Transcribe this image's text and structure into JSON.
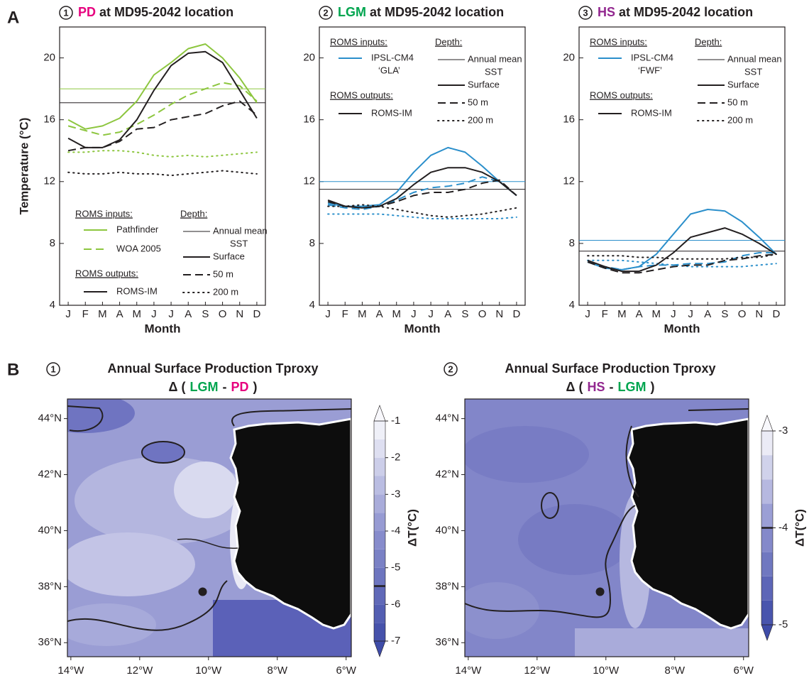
{
  "panel_labels": [
    "A",
    "B"
  ],
  "chart_data": [
    {
      "type": "line",
      "number": "1",
      "title": [
        {
          "text": "PD",
          "color": "#e6007e"
        },
        {
          "text": "at MD95-2042 location",
          "color": "#231f20"
        }
      ],
      "categories": [
        "J",
        "F",
        "M",
        "A",
        "M",
        "J",
        "J",
        "A",
        "S",
        "O",
        "N",
        "D"
      ],
      "ylim": [
        4,
        22
      ],
      "yticks": [
        4,
        8,
        12,
        16,
        20
      ],
      "ylabel": "Temperature (°C)",
      "xlabel": "Month",
      "mean_lines": [
        {
          "value": 18.0,
          "color": "#8dc63f"
        },
        {
          "value": 17.1,
          "color": "#231f20"
        }
      ],
      "series": [
        {
          "color": "#8dc63f",
          "style": "solid",
          "values": [
            16.0,
            15.4,
            15.6,
            16.1,
            17.2,
            18.9,
            19.7,
            20.6,
            20.9,
            20.0,
            18.7,
            17.1
          ]
        },
        {
          "color": "#8dc63f",
          "style": "dashed",
          "values": [
            15.6,
            15.3,
            15.0,
            15.2,
            15.7,
            16.3,
            17.0,
            17.6,
            18.0,
            18.4,
            18.2,
            17.2
          ]
        },
        {
          "color": "#8dc63f",
          "style": "dotted",
          "values": [
            13.9,
            13.9,
            14.0,
            14.0,
            13.9,
            13.7,
            13.6,
            13.7,
            13.6,
            13.7,
            13.8,
            13.9
          ]
        },
        {
          "color": "#231f20",
          "style": "solid",
          "values": [
            14.8,
            14.2,
            14.2,
            14.7,
            16.0,
            17.9,
            19.5,
            20.3,
            20.4,
            19.7,
            17.9,
            16.1
          ]
        },
        {
          "color": "#231f20",
          "style": "dashed",
          "values": [
            14.0,
            14.2,
            14.2,
            14.6,
            15.4,
            15.5,
            16.0,
            16.2,
            16.4,
            16.9,
            17.2,
            16.3
          ]
        },
        {
          "color": "#231f20",
          "style": "dotted",
          "values": [
            12.6,
            12.5,
            12.5,
            12.6,
            12.5,
            12.5,
            12.4,
            12.5,
            12.6,
            12.7,
            12.6,
            12.5
          ]
        }
      ],
      "legend": {
        "position": "lower-left",
        "inputs_title": "ROMS inputs:",
        "inputs": [
          {
            "label": [
              "Pathfinder"
            ],
            "color": "#8dc63f",
            "style": "solid"
          },
          {
            "label": [
              "WOA 2005"
            ],
            "color": "#8dc63f",
            "style": "dashed"
          }
        ],
        "outputs_title": "ROMS outputs:",
        "outputs": [
          {
            "label": [
              "ROMS-IM"
            ],
            "color": "#231f20",
            "style": "solid"
          }
        ],
        "depth_title": "Depth:",
        "depth": [
          {
            "label": [
              "Annual mean",
              "SST"
            ],
            "style": "thin"
          },
          {
            "label": [
              "Surface"
            ],
            "style": "solid"
          },
          {
            "label": [
              "50 m"
            ],
            "style": "dashed"
          },
          {
            "label": [
              "200 m"
            ],
            "style": "dotted"
          }
        ]
      }
    },
    {
      "type": "line",
      "number": "2",
      "title": [
        {
          "text": "LGM",
          "color": "#00a54f"
        },
        {
          "text": "at MD95-2042 location",
          "color": "#231f20"
        }
      ],
      "categories": [
        "J",
        "F",
        "M",
        "A",
        "M",
        "J",
        "J",
        "A",
        "S",
        "O",
        "N",
        "D"
      ],
      "ylim": [
        4,
        22
      ],
      "yticks": [
        4,
        8,
        12,
        16,
        20
      ],
      "xlabel": "Month",
      "mean_lines": [
        {
          "value": 12.0,
          "color": "#2b8fcb"
        },
        {
          "value": 11.5,
          "color": "#231f20"
        }
      ],
      "series": [
        {
          "color": "#2b8fcb",
          "style": "solid",
          "values": [
            10.6,
            10.4,
            10.4,
            10.5,
            11.3,
            12.6,
            13.7,
            14.2,
            13.9,
            13.0,
            12.0,
            11.1
          ]
        },
        {
          "color": "#2b8fcb",
          "style": "dashed",
          "values": [
            10.5,
            10.3,
            10.2,
            10.4,
            10.8,
            11.3,
            11.6,
            11.7,
            11.9,
            12.3,
            12.0,
            11.1
          ]
        },
        {
          "color": "#2b8fcb",
          "style": "dotted",
          "values": [
            9.9,
            9.9,
            9.9,
            9.9,
            9.8,
            9.7,
            9.6,
            9.6,
            9.6,
            9.6,
            9.6,
            9.7
          ]
        },
        {
          "color": "#231f20",
          "style": "solid",
          "values": [
            10.8,
            10.4,
            10.3,
            10.4,
            10.9,
            11.8,
            12.6,
            12.9,
            12.9,
            12.6,
            12.0,
            11.1
          ]
        },
        {
          "color": "#231f20",
          "style": "dashed",
          "values": [
            10.7,
            10.4,
            10.3,
            10.4,
            10.7,
            11.1,
            11.3,
            11.3,
            11.5,
            11.9,
            12.1,
            11.1
          ]
        },
        {
          "color": "#231f20",
          "style": "dotted",
          "values": [
            10.4,
            10.4,
            10.5,
            10.4,
            10.2,
            10.0,
            9.8,
            9.7,
            9.8,
            9.9,
            10.1,
            10.3
          ]
        }
      ],
      "legend": {
        "position": "upper-left",
        "inputs_title": "ROMS inputs:",
        "inputs": [
          {
            "label": [
              "IPSL-CM4",
              "‘GLA’"
            ],
            "color": "#2b8fcb",
            "style": "solid"
          }
        ],
        "outputs_title": "ROMS outputs:",
        "outputs": [
          {
            "label": [
              "ROMS-IM"
            ],
            "color": "#231f20",
            "style": "solid"
          }
        ],
        "depth_title": "Depth:",
        "depth": [
          {
            "label": [
              "Annual mean",
              "SST"
            ],
            "style": "thin"
          },
          {
            "label": [
              "Surface"
            ],
            "style": "solid"
          },
          {
            "label": [
              "50 m"
            ],
            "style": "dashed"
          },
          {
            "label": [
              "200 m"
            ],
            "style": "dotted"
          }
        ]
      }
    },
    {
      "type": "line",
      "number": "3",
      "title": [
        {
          "text": "HS",
          "color": "#92278f"
        },
        {
          "text": "at MD95-2042 location",
          "color": "#231f20"
        }
      ],
      "categories": [
        "J",
        "F",
        "M",
        "A",
        "M",
        "J",
        "J",
        "A",
        "S",
        "O",
        "N",
        "D"
      ],
      "ylim": [
        4,
        22
      ],
      "yticks": [
        4,
        8,
        12,
        16,
        20
      ],
      "xlabel": "Month",
      "mean_lines": [
        {
          "value": 8.2,
          "color": "#2b8fcb"
        },
        {
          "value": 7.5,
          "color": "#231f20"
        }
      ],
      "series": [
        {
          "color": "#2b8fcb",
          "style": "solid",
          "values": [
            6.8,
            6.4,
            6.3,
            6.5,
            7.3,
            8.6,
            9.9,
            10.2,
            10.1,
            9.4,
            8.4,
            7.3
          ]
        },
        {
          "color": "#2b8fcb",
          "style": "dashed",
          "values": [
            6.8,
            6.5,
            6.3,
            6.5,
            6.6,
            6.6,
            6.7,
            6.7,
            6.8,
            7.2,
            7.4,
            7.4
          ]
        },
        {
          "color": "#2b8fcb",
          "style": "dotted",
          "values": [
            6.9,
            6.9,
            6.9,
            6.8,
            6.7,
            6.6,
            6.5,
            6.5,
            6.5,
            6.5,
            6.6,
            6.7
          ]
        },
        {
          "color": "#231f20",
          "style": "solid",
          "values": [
            6.9,
            6.5,
            6.2,
            6.2,
            6.6,
            7.4,
            8.4,
            8.7,
            9.0,
            8.6,
            8.0,
            7.3
          ]
        },
        {
          "color": "#231f20",
          "style": "dashed",
          "values": [
            6.8,
            6.4,
            6.1,
            6.1,
            6.3,
            6.5,
            6.6,
            6.6,
            6.9,
            7.0,
            7.2,
            7.3
          ]
        },
        {
          "color": "#231f20",
          "style": "dotted",
          "values": [
            7.2,
            7.2,
            7.2,
            7.1,
            7.1,
            7.0,
            7.0,
            7.0,
            7.0,
            7.1,
            7.1,
            7.3
          ]
        }
      ],
      "legend": {
        "position": "upper-left",
        "inputs_title": "ROMS inputs:",
        "inputs": [
          {
            "label": [
              "IPSL-CM4",
              "‘FWF’"
            ],
            "color": "#2b8fcb",
            "style": "solid"
          }
        ],
        "outputs_title": "ROMS outputs:",
        "outputs": [
          {
            "label": [
              "ROMS-IM"
            ],
            "color": "#231f20",
            "style": "solid"
          }
        ],
        "depth_title": "Depth:",
        "depth": [
          {
            "label": [
              "Annual mean",
              "SST"
            ],
            "style": "thin"
          },
          {
            "label": [
              "Surface"
            ],
            "style": "solid"
          },
          {
            "label": [
              "50 m"
            ],
            "style": "dashed"
          },
          {
            "label": [
              "200 m"
            ],
            "style": "dotted"
          }
        ]
      }
    },
    {
      "type": "map",
      "number": "1",
      "title": "Annual Surface Production Tproxy",
      "subtitle": [
        {
          "text": "Δ (",
          "color": "#231f20"
        },
        {
          "text": "LGM",
          "color": "#00a54f"
        },
        {
          "text": "-",
          "color": "#231f20"
        },
        {
          "text": "PD",
          "color": "#e6007e"
        },
        {
          "text": ")",
          "color": "#231f20"
        }
      ],
      "xlim": [
        -14.1,
        -5.85
      ],
      "ylim": [
        35.5,
        44.7
      ],
      "xticks": [
        {
          "value": -14,
          "label": "14°W"
        },
        {
          "value": -12,
          "label": "12°W"
        },
        {
          "value": -10,
          "label": "10°W"
        },
        {
          "value": -8,
          "label": "8°W"
        },
        {
          "value": -6,
          "label": "6°W"
        }
      ],
      "yticks": [
        {
          "value": 36,
          "label": "36°N"
        },
        {
          "value": 38,
          "label": "38°N"
        },
        {
          "value": 40,
          "label": "40°N"
        },
        {
          "value": 42,
          "label": "42°N"
        },
        {
          "value": 44,
          "label": "44°N"
        }
      ],
      "site": [
        -10.17,
        37.82
      ],
      "colorbar": {
        "label": "ΔT(°C)",
        "clim": [
          -7,
          -1
        ],
        "step": 0.5,
        "ticks": [
          -7,
          -6,
          -5,
          -4,
          -3,
          -2,
          -1
        ],
        "contour": -5.5,
        "colormap": [
          "#3f4ca8",
          "#8e92cf",
          "#f8f8fc"
        ]
      }
    },
    {
      "type": "map",
      "number": "2",
      "title": "Annual Surface Production Tproxy",
      "subtitle": [
        {
          "text": "Δ (",
          "color": "#231f20"
        },
        {
          "text": "HS",
          "color": "#92278f"
        },
        {
          "text": "-",
          "color": "#231f20"
        },
        {
          "text": "LGM",
          "color": "#00a54f"
        },
        {
          "text": ")",
          "color": "#231f20"
        }
      ],
      "xlim": [
        -14.1,
        -5.85
      ],
      "ylim": [
        35.5,
        44.7
      ],
      "xticks": [
        {
          "value": -14,
          "label": "14°W"
        },
        {
          "value": -12,
          "label": "12°W"
        },
        {
          "value": -10,
          "label": "10°W"
        },
        {
          "value": -8,
          "label": "8°W"
        },
        {
          "value": -6,
          "label": "6°W"
        }
      ],
      "yticks": [
        {
          "value": 36,
          "label": "36°N"
        },
        {
          "value": 38,
          "label": "38°N"
        },
        {
          "value": 40,
          "label": "40°N"
        },
        {
          "value": 42,
          "label": "42°N"
        },
        {
          "value": 44,
          "label": "44°N"
        }
      ],
      "site": [
        -10.17,
        37.82
      ],
      "colorbar": {
        "label": "ΔT(°C)",
        "clim": [
          -5,
          -3
        ],
        "step": 0.25,
        "ticks": [
          -5,
          -4,
          -3
        ],
        "contour": -4,
        "colormap": [
          "#3f4ca8",
          "#8e92cf",
          "#f8f8fc"
        ]
      }
    }
  ]
}
